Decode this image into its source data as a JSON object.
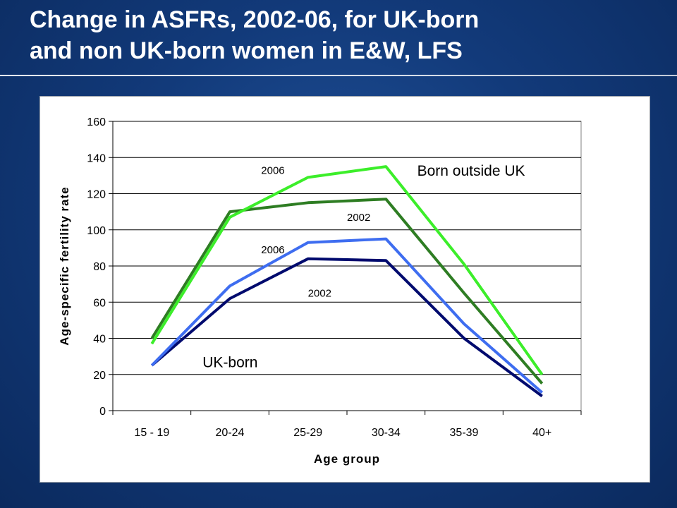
{
  "slide": {
    "title_line1": "Change in ASFRs, 2002-06, for UK-born",
    "title_line2": "and non UK-born women in E&W, LFS"
  },
  "chart_data": {
    "type": "line",
    "categories": [
      "15 - 19",
      "20-24",
      "25-29",
      "30-34",
      "35-39",
      "40+"
    ],
    "xlabel": "Age group",
    "ylabel": "Age-specific fertility rate",
    "ylim": [
      0,
      160
    ],
    "yticks": [
      0,
      20,
      40,
      60,
      80,
      100,
      120,
      140,
      160
    ],
    "grid": true,
    "series": [
      {
        "color": "#2e7d23",
        "values": [
          40,
          110,
          115,
          117,
          65,
          15
        ]
      },
      {
        "color": "#3cee2a",
        "values": [
          37,
          107,
          129,
          135,
          81,
          20
        ]
      },
      {
        "color": "#000a6e",
        "values": [
          25,
          62,
          84,
          83,
          40,
          8
        ]
      },
      {
        "color": "#3e6df0",
        "values": [
          25,
          69,
          93,
          95,
          48,
          10
        ]
      }
    ],
    "annotations": [
      {
        "text": "2006",
        "kind": "small",
        "cat": 1.4,
        "y": 131
      },
      {
        "text": "Born outside UK",
        "kind": "big",
        "cat": 3.4,
        "y": 130
      },
      {
        "text": "2002",
        "kind": "small",
        "cat": 2.5,
        "y": 105
      },
      {
        "text": "2006",
        "kind": "small",
        "cat": 1.4,
        "y": 87
      },
      {
        "text": "2002",
        "kind": "small",
        "cat": 2.0,
        "y": 63
      },
      {
        "text": "UK-born",
        "kind": "big",
        "cat": 0.65,
        "y": 24
      }
    ]
  }
}
